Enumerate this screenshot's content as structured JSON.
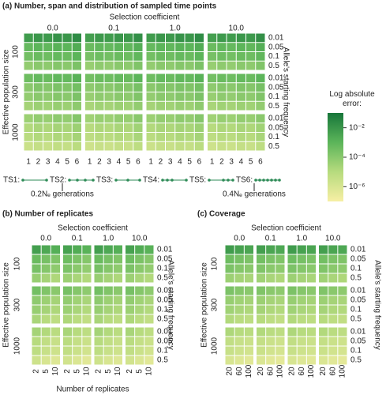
{
  "chart_data": [
    {
      "type": "heatmap",
      "title": "(a)  Number, span and distribution of sampled time points",
      "x_title": "Selection coefficient",
      "column_groups": [
        "0.0",
        "0.1",
        "1.0",
        "10.0"
      ],
      "columns": [
        "1",
        "2",
        "3",
        "4",
        "5",
        "6"
      ],
      "row_title": "Effective population size",
      "row_groups": [
        "100",
        "300",
        "1000"
      ],
      "rows": [
        "0.01",
        "0.05",
        "0.1",
        "0.5"
      ],
      "y2_title": "Allele's starting frequency",
      "schemes": [
        "TS1:",
        "TS2:",
        "TS3:",
        "TS4:",
        "TS5:",
        "TS6:"
      ],
      "annotations": [
        "0.2Nₑ generations",
        "0.4Nₑ generations"
      ],
      "colorbar": {
        "title": "Log absolute error:",
        "zlim": [
          -7,
          -1
        ],
        "colors": [
          "#f7efa4",
          "#b7db7e",
          "#5cb55a",
          "#17763a"
        ],
        "zticks": [
          {
            "value": -2,
            "label": "10⁻²"
          },
          {
            "value": -4,
            "label": "10⁻⁴"
          },
          {
            "value": -6,
            "label": "10⁻⁶"
          }
        ]
      },
      "values": [
        [
          -2.2,
          -2.0,
          -2.1,
          -1.9,
          -2.0,
          -1.7,
          -2.3,
          -2.1,
          -2.2,
          -2.0,
          -2.1,
          -1.8,
          -2.2,
          -2.0,
          -2.1,
          -1.9,
          -2.0,
          -1.7,
          -2.3,
          -2.1,
          -2.2,
          -2.0,
          -2.1,
          -1.8
        ],
        [
          -3.2,
          -3.0,
          -3.1,
          -2.9,
          -3.0,
          -2.7,
          -3.3,
          -3.1,
          -3.2,
          -3.0,
          -3.1,
          -2.8,
          -3.2,
          -3.0,
          -3.1,
          -2.9,
          -3.0,
          -2.7,
          -3.3,
          -3.1,
          -3.2,
          -3.0,
          -3.1,
          -2.8
        ],
        [
          -3.5,
          -3.3,
          -3.4,
          -3.2,
          -3.3,
          -3.0,
          -3.6,
          -3.4,
          -3.5,
          -3.3,
          -3.4,
          -3.1,
          -3.5,
          -3.3,
          -3.4,
          -3.2,
          -3.3,
          -3.0,
          -3.6,
          -3.4,
          -3.5,
          -3.3,
          -3.4,
          -3.1
        ],
        [
          -4.2,
          -4.0,
          -4.1,
          -3.9,
          -4.0,
          -3.7,
          -4.3,
          -4.1,
          -4.2,
          -4.0,
          -4.1,
          -3.8,
          -4.2,
          -4.0,
          -4.1,
          -3.9,
          -4.0,
          -3.7,
          -4.3,
          -4.1,
          -4.2,
          -4.0,
          -4.1,
          -3.8
        ],
        [
          -3.4,
          -3.2,
          -3.3,
          -3.1,
          -3.2,
          -2.9,
          -3.5,
          -3.3,
          -3.4,
          -3.2,
          -3.3,
          -3.0,
          -3.4,
          -3.2,
          -3.3,
          -3.1,
          -3.2,
          -2.9,
          -3.5,
          -3.3,
          -3.4,
          -3.2,
          -3.3,
          -3.0
        ],
        [
          -4.0,
          -3.8,
          -3.9,
          -3.7,
          -3.8,
          -3.5,
          -4.1,
          -3.9,
          -4.0,
          -3.8,
          -3.9,
          -3.6,
          -4.0,
          -3.8,
          -3.9,
          -3.7,
          -3.8,
          -3.5,
          -4.1,
          -3.9,
          -4.0,
          -3.8,
          -3.9,
          -3.6
        ],
        [
          -4.2,
          -4.0,
          -4.1,
          -3.9,
          -4.0,
          -3.7,
          -4.3,
          -4.1,
          -4.2,
          -4.0,
          -4.1,
          -3.8,
          -4.2,
          -4.0,
          -4.1,
          -3.9,
          -4.0,
          -3.7,
          -4.3,
          -4.1,
          -4.2,
          -4.0,
          -4.1,
          -3.8
        ],
        [
          -4.6,
          -4.4,
          -4.5,
          -4.3,
          -4.4,
          -4.1,
          -4.7,
          -4.5,
          -4.6,
          -4.4,
          -4.5,
          -4.2,
          -4.6,
          -4.4,
          -4.5,
          -4.3,
          -4.4,
          -4.1,
          -4.7,
          -4.5,
          -4.6,
          -4.4,
          -4.5,
          -4.2
        ],
        [
          -4.4,
          -4.2,
          -4.3,
          -4.1,
          -4.2,
          -3.9,
          -4.5,
          -4.3,
          -4.4,
          -4.2,
          -4.3,
          -4.0,
          -4.4,
          -4.2,
          -4.3,
          -4.1,
          -4.2,
          -3.9,
          -4.5,
          -4.3,
          -4.4,
          -4.2,
          -4.3,
          -4.0
        ],
        [
          -4.9,
          -4.7,
          -4.8,
          -4.6,
          -4.7,
          -4.4,
          -5.0,
          -4.8,
          -4.9,
          -4.7,
          -4.8,
          -4.5,
          -4.9,
          -4.7,
          -4.8,
          -4.6,
          -4.7,
          -4.4,
          -5.0,
          -4.8,
          -4.9,
          -4.7,
          -4.8,
          -4.5
        ],
        [
          -5.1,
          -4.9,
          -5.0,
          -4.8,
          -4.9,
          -4.6,
          -5.2,
          -5.0,
          -5.1,
          -4.9,
          -5.0,
          -4.7,
          -5.1,
          -4.9,
          -5.0,
          -4.8,
          -4.9,
          -4.6,
          -5.2,
          -5.0,
          -5.1,
          -4.9,
          -5.0,
          -4.7
        ],
        [
          -5.6,
          -5.4,
          -5.5,
          -5.3,
          -5.4,
          -5.1,
          -5.7,
          -5.5,
          -5.6,
          -5.4,
          -5.5,
          -5.2,
          -5.6,
          -5.4,
          -5.5,
          -5.3,
          -5.4,
          -5.1,
          -5.7,
          -5.5,
          -5.6,
          -5.4,
          -5.5,
          -5.2
        ]
      ]
    },
    {
      "type": "heatmap",
      "title": "(b)  Number of replicates",
      "x_title": "Selection coefficient",
      "column_groups": [
        "0.0",
        "0.1",
        "1.0",
        "10.0"
      ],
      "columns": [
        "2",
        "5",
        "10"
      ],
      "x_label": "Number of replicates",
      "row_title": "Effective population size",
      "row_groups": [
        "100",
        "300",
        "1000"
      ],
      "rows": [
        "0.01",
        "0.05",
        "0.1",
        "0.5"
      ],
      "y2_title": "Allele's starting frequency",
      "values": [
        [
          -2.3,
          -2.6,
          -2.8,
          -2.4,
          -2.7,
          -2.9,
          -2.3,
          -2.6,
          -2.8,
          -2.4,
          -2.7,
          -2.9
        ],
        [
          -3.3,
          -3.6,
          -3.8,
          -3.4,
          -3.7,
          -3.9,
          -3.3,
          -3.6,
          -3.8,
          -3.4,
          -3.7,
          -3.9
        ],
        [
          -3.6,
          -3.9,
          -4.1,
          -3.7,
          -4.0,
          -4.2,
          -3.6,
          -3.9,
          -4.1,
          -3.7,
          -4.0,
          -4.2
        ],
        [
          -4.3,
          -4.6,
          -4.8,
          -4.4,
          -4.7,
          -4.9,
          -4.3,
          -4.6,
          -4.8,
          -4.4,
          -4.7,
          -4.9
        ],
        [
          -3.5,
          -3.8,
          -4.0,
          -3.6,
          -3.9,
          -4.1,
          -3.5,
          -3.8,
          -4.0,
          -3.6,
          -3.9,
          -4.1
        ],
        [
          -4.1,
          -4.4,
          -4.6,
          -4.2,
          -4.5,
          -4.7,
          -4.1,
          -4.4,
          -4.6,
          -4.2,
          -4.5,
          -4.7
        ],
        [
          -4.3,
          -4.6,
          -4.8,
          -4.4,
          -4.7,
          -4.9,
          -4.3,
          -4.6,
          -4.8,
          -4.4,
          -4.7,
          -4.9
        ],
        [
          -4.7,
          -5.0,
          -5.2,
          -4.8,
          -5.1,
          -5.3,
          -4.7,
          -5.0,
          -5.2,
          -4.8,
          -5.1,
          -5.3
        ],
        [
          -4.6,
          -4.9,
          -5.1,
          -4.7,
          -5.0,
          -5.2,
          -4.6,
          -4.9,
          -5.1,
          -4.7,
          -5.0,
          -5.2
        ],
        [
          -5.0,
          -5.3,
          -5.5,
          -5.1,
          -5.4,
          -5.6,
          -5.0,
          -5.3,
          -5.5,
          -5.1,
          -5.4,
          -5.6
        ],
        [
          -5.2,
          -5.5,
          -5.7,
          -5.3,
          -5.6,
          -5.8,
          -5.2,
          -5.5,
          -5.7,
          -5.3,
          -5.6,
          -5.8
        ],
        [
          -5.7,
          -6.0,
          -6.2,
          -5.8,
          -6.1,
          -6.3,
          -5.7,
          -6.0,
          -6.2,
          -5.8,
          -6.1,
          -6.3
        ]
      ]
    },
    {
      "type": "heatmap",
      "title": "(c)  Coverage",
      "x_title": "Selection coefficient",
      "column_groups": [
        "0.0",
        "0.1",
        "1.0",
        "10.0"
      ],
      "columns": [
        "20",
        "60",
        "100"
      ],
      "row_title": "Effective population size",
      "row_groups": [
        "100",
        "300",
        "1000"
      ],
      "rows": [
        "0.01",
        "0.05",
        "0.1",
        "0.5"
      ],
      "y2_title": "Allele's starting frequency",
      "values": [
        [
          -2.2,
          -2.4,
          -2.5,
          -2.3,
          -2.5,
          -2.6,
          -2.2,
          -2.4,
          -2.5,
          -2.3,
          -2.5,
          -2.6
        ],
        [
          -3.4,
          -3.6,
          -3.7,
          -3.5,
          -3.7,
          -3.8,
          -3.4,
          -3.6,
          -3.7,
          -3.5,
          -3.7,
          -3.8
        ],
        [
          -3.7,
          -3.9,
          -4.0,
          -3.8,
          -4.0,
          -4.1,
          -3.7,
          -3.9,
          -4.0,
          -3.8,
          -4.0,
          -4.1
        ],
        [
          -4.4,
          -4.6,
          -4.7,
          -4.5,
          -4.7,
          -4.8,
          -4.4,
          -4.6,
          -4.7,
          -4.5,
          -4.7,
          -4.8
        ],
        [
          -3.7,
          -3.9,
          -4.0,
          -3.8,
          -4.0,
          -4.1,
          -3.7,
          -3.9,
          -4.0,
          -3.8,
          -4.0,
          -4.1
        ],
        [
          -4.3,
          -4.5,
          -4.6,
          -4.4,
          -4.6,
          -4.7,
          -4.3,
          -4.5,
          -4.6,
          -4.4,
          -4.6,
          -4.7
        ],
        [
          -4.5,
          -4.7,
          -4.8,
          -4.6,
          -4.8,
          -4.9,
          -4.5,
          -4.7,
          -4.8,
          -4.6,
          -4.8,
          -4.9
        ],
        [
          -4.9,
          -5.1,
          -5.2,
          -5.0,
          -5.2,
          -5.3,
          -4.9,
          -5.1,
          -5.2,
          -5.0,
          -5.2,
          -5.3
        ],
        [
          -4.8,
          -5.0,
          -5.1,
          -4.9,
          -5.1,
          -5.2,
          -4.8,
          -5.0,
          -5.1,
          -4.9,
          -5.1,
          -5.2
        ],
        [
          -5.3,
          -5.5,
          -5.6,
          -5.4,
          -5.6,
          -5.7,
          -5.3,
          -5.5,
          -5.6,
          -5.4,
          -5.6,
          -5.7
        ],
        [
          -5.5,
          -5.7,
          -5.8,
          -5.6,
          -5.8,
          -5.9,
          -5.5,
          -5.7,
          -5.8,
          -5.6,
          -5.8,
          -5.9
        ],
        [
          -6.0,
          -6.2,
          -6.3,
          -6.1,
          -6.3,
          -6.4,
          -6.0,
          -6.2,
          -6.3,
          -6.1,
          -6.3,
          -6.4
        ]
      ]
    }
  ]
}
